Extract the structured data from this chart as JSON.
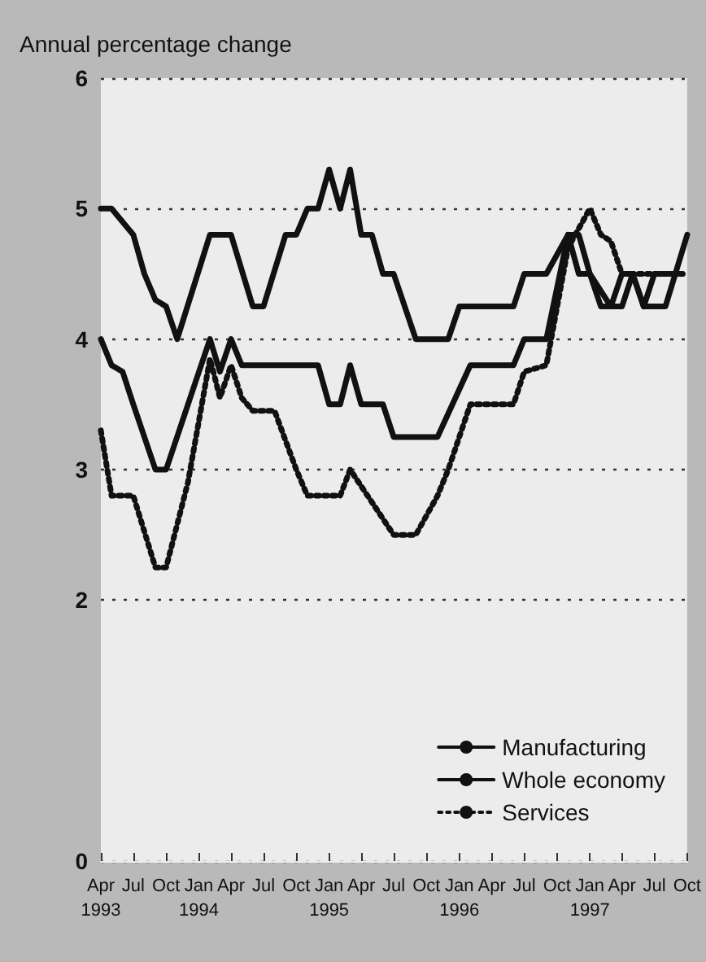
{
  "chart_data": {
    "type": "line",
    "ylabel": "Annual percentage change",
    "xlim": [
      "1993-04",
      "1997-10"
    ],
    "xticks": [
      {
        "value": "1993-04",
        "label": "Apr\n1993"
      },
      {
        "value": "1993-07",
        "label": "Jul"
      },
      {
        "value": "1993-10",
        "label": "Oct"
      },
      {
        "value": "1994-01",
        "label": "Jan\n1994"
      },
      {
        "value": "1994-04",
        "label": "Apr"
      },
      {
        "value": "1994-07",
        "label": "Jul"
      },
      {
        "value": "1994-10",
        "label": "Oct"
      },
      {
        "value": "1995-01",
        "label": "Jan\n1995"
      },
      {
        "value": "1995-04",
        "label": "Apr"
      },
      {
        "value": "1995-07",
        "label": "Jul"
      },
      {
        "value": "1995-10",
        "label": "Oct"
      },
      {
        "value": "1996-01",
        "label": "Jan\n1996"
      },
      {
        "value": "1996-04",
        "label": "Apr"
      },
      {
        "value": "1996-07",
        "label": "Jul"
      },
      {
        "value": "1996-10",
        "label": "Oct"
      },
      {
        "value": "1997-01",
        "label": "Jan\n1997"
      },
      {
        "value": "1997-04",
        "label": "Apr"
      },
      {
        "value": "1997-07",
        "label": "Jul"
      },
      {
        "value": "1997-10",
        "label": "Oct"
      }
    ],
    "ylim": [
      0,
      6
    ],
    "yticks": [
      0,
      2,
      3,
      4,
      5,
      6
    ],
    "grid": "y",
    "legend": "bottom right",
    "marker": "none",
    "series": [
      {
        "name": "Manufacturing",
        "color": "#111111",
        "line_style": "solid",
        "x": [
          "1993-04",
          "1993-05",
          "1993-07",
          "1993-08",
          "1993-09",
          "1993-10",
          "1993-11",
          "1994-02",
          "1994-04",
          "1994-06",
          "1994-07",
          "1994-09",
          "1994-10",
          "1994-11",
          "1994-12",
          "1995-01",
          "1995-02",
          "1995-03",
          "1995-04",
          "1995-05",
          "1995-06",
          "1995-07",
          "1995-09",
          "1995-12",
          "1996-01",
          "1996-06",
          "1996-07",
          "1996-09",
          "1996-11",
          "1996-12",
          "1997-01",
          "1997-03",
          "1997-04",
          "1997-05",
          "1997-06",
          "1997-08",
          "1997-10"
        ],
        "values": [
          5.0,
          5.0,
          4.8,
          4.5,
          4.3,
          4.25,
          4.0,
          4.8,
          4.8,
          4.25,
          4.25,
          4.8,
          4.8,
          5.0,
          5.0,
          5.3,
          5.0,
          5.3,
          4.8,
          4.8,
          4.5,
          4.5,
          4.0,
          4.0,
          4.25,
          4.25,
          4.5,
          4.5,
          4.8,
          4.8,
          4.5,
          4.25,
          4.25,
          4.5,
          4.25,
          4.25,
          4.8
        ]
      },
      {
        "name": "Whole economy",
        "color": "#111111",
        "line_style": "solid",
        "x": [
          "1993-04",
          "1993-05",
          "1993-06",
          "1993-07",
          "1993-09",
          "1993-10",
          "1994-01",
          "1994-02",
          "1994-03",
          "1994-04",
          "1994-05",
          "1994-12",
          "1995-01",
          "1995-02",
          "1995-03",
          "1995-04",
          "1995-06",
          "1995-07",
          "1995-11",
          "1996-02",
          "1996-06",
          "1996-07",
          "1996-09",
          "1996-11",
          "1996-12",
          "1997-01",
          "1997-02",
          "1997-03",
          "1997-04",
          "1997-05",
          "1997-06",
          "1997-07",
          "1997-09"
        ],
        "values": [
          4.0,
          3.8,
          3.75,
          3.5,
          3.0,
          3.0,
          3.75,
          4.0,
          3.75,
          4.0,
          3.8,
          3.8,
          3.5,
          3.5,
          3.8,
          3.5,
          3.5,
          3.25,
          3.25,
          3.8,
          3.8,
          4.0,
          4.0,
          4.8,
          4.5,
          4.5,
          4.25,
          4.25,
          4.5,
          4.5,
          4.25,
          4.5,
          4.5
        ]
      },
      {
        "name": "Services",
        "color": "#111111",
        "line_style": "dotted",
        "x": [
          "1993-04",
          "1993-05",
          "1993-07",
          "1993-09",
          "1993-10",
          "1993-12",
          "1994-02",
          "1994-03",
          "1994-04",
          "1994-05",
          "1994-06",
          "1994-08",
          "1994-10",
          "1994-11",
          "1995-02",
          "1995-03",
          "1995-05",
          "1995-07",
          "1995-09",
          "1995-11",
          "1995-12",
          "1996-02",
          "1996-06",
          "1996-07",
          "1996-09",
          "1996-11",
          "1997-01",
          "1997-02",
          "1997-03",
          "1997-04",
          "1997-10"
        ],
        "values": [
          3.3,
          2.8,
          2.8,
          2.25,
          2.25,
          2.9,
          3.85,
          3.55,
          3.8,
          3.55,
          3.45,
          3.45,
          3.0,
          2.8,
          2.8,
          3.0,
          2.75,
          2.5,
          2.5,
          2.8,
          3.0,
          3.5,
          3.5,
          3.75,
          3.8,
          4.7,
          5.0,
          4.8,
          4.75,
          4.5,
          4.5
        ]
      }
    ]
  }
}
